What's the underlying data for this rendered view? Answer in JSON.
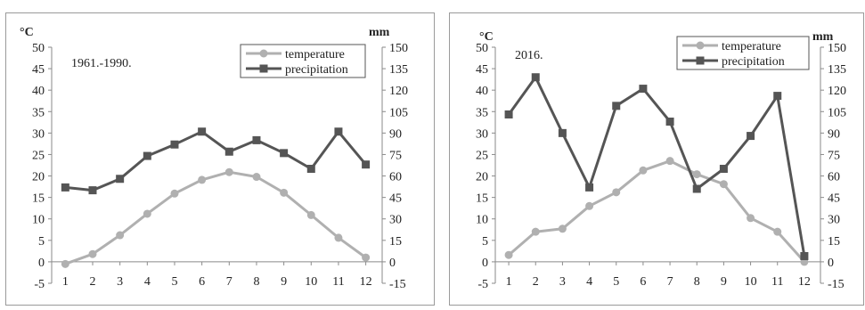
{
  "chart_data": [
    {
      "type": "line",
      "annotation": "1961.-1990.",
      "y_left_unit": "°C",
      "y_right_unit": "mm",
      "x": [
        1,
        2,
        3,
        4,
        5,
        6,
        7,
        8,
        9,
        10,
        11,
        12
      ],
      "x_tick_labels": [
        "1",
        "2",
        "3",
        "4",
        "5",
        "6",
        "7",
        "8",
        "9",
        "10",
        "11",
        "12"
      ],
      "y_left_ticks": [
        "-5",
        "0",
        "5",
        "10",
        "15",
        "20",
        "25",
        "30",
        "35",
        "40",
        "45",
        "50"
      ],
      "y_right_ticks": [
        "-15",
        "0",
        "15",
        "30",
        "45",
        "60",
        "75",
        "90",
        "105",
        "120",
        "135",
        "150"
      ],
      "ylim_left": [
        -5,
        50
      ],
      "ylim_right": [
        -15,
        150
      ],
      "legend_position": "top-right",
      "grid": false,
      "series": [
        {
          "name": "temperature",
          "axis": "left",
          "color": "#b0b0b0",
          "marker": "circle",
          "values": [
            -0.5,
            1.8,
            6.2,
            11.2,
            15.9,
            19.1,
            20.9,
            19.8,
            16.1,
            10.9,
            5.6,
            1.0
          ]
        },
        {
          "name": "precipitation",
          "axis": "right",
          "color": "#555555",
          "marker": "square",
          "values": [
            52,
            50,
            58,
            74,
            82,
            91,
            77,
            85,
            76,
            65,
            91,
            68
          ]
        }
      ]
    },
    {
      "type": "line",
      "annotation": "2016.",
      "y_left_unit": "°C",
      "y_right_unit": "mm",
      "x": [
        1,
        2,
        3,
        4,
        5,
        6,
        7,
        8,
        9,
        10,
        11,
        12
      ],
      "x_tick_labels": [
        "1",
        "2",
        "3",
        "4",
        "5",
        "6",
        "7",
        "8",
        "9",
        "10",
        "11",
        "12"
      ],
      "y_left_ticks": [
        "-5",
        "0",
        "5",
        "10",
        "15",
        "20",
        "25",
        "30",
        "35",
        "40",
        "45",
        "50"
      ],
      "y_right_ticks": [
        "-15",
        "0",
        "15",
        "30",
        "45",
        "60",
        "75",
        "90",
        "105",
        "120",
        "135",
        "150"
      ],
      "ylim_left": [
        -5,
        50
      ],
      "ylim_right": [
        -15,
        150
      ],
      "legend_position": "top-right",
      "grid": false,
      "series": [
        {
          "name": "temperature",
          "axis": "left",
          "color": "#b0b0b0",
          "marker": "circle",
          "values": [
            1.6,
            7.0,
            7.7,
            13.0,
            16.2,
            21.3,
            23.5,
            20.4,
            18.1,
            10.2,
            7.0,
            0.0
          ]
        },
        {
          "name": "precipitation",
          "axis": "right",
          "color": "#555555",
          "marker": "square",
          "values": [
            103,
            129,
            90,
            52,
            109,
            121,
            98,
            51,
            65,
            88,
            116,
            4
          ]
        }
      ]
    }
  ]
}
